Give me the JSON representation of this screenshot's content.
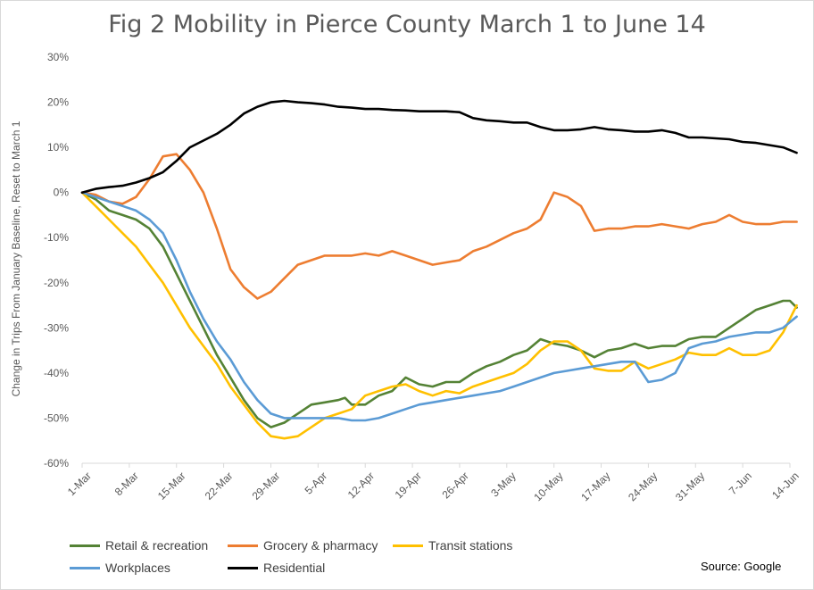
{
  "chart_data": {
    "type": "line",
    "title": "Fig 2 Mobility in Pierce County March 1 to June 14",
    "ylabel": "Change in Trips From January Baseline, Reset to March 1",
    "xlabel": "",
    "source": "Source: Google",
    "ylim": [
      -60,
      30
    ],
    "yticks": [
      "30%",
      "20%",
      "10%",
      "0%",
      "-10%",
      "-20%",
      "-30%",
      "-40%",
      "-50%",
      "-60%"
    ],
    "xticks": [
      "1-Mar",
      "8-Mar",
      "15-Mar",
      "22-Mar",
      "29-Mar",
      "5-Apr",
      "12-Apr",
      "19-Apr",
      "26-Apr",
      "3-May",
      "10-May",
      "17-May",
      "24-May",
      "31-May",
      "7-Jun",
      "14-Jun"
    ],
    "x_unit": "days since 1-Mar",
    "grid": false,
    "legend_position": "bottom",
    "series": [
      {
        "name": "Retail & recreation",
        "color": "#548235",
        "points": [
          [
            0,
            0
          ],
          [
            2,
            -1.5
          ],
          [
            4,
            -4
          ],
          [
            6,
            -5
          ],
          [
            8,
            -6
          ],
          [
            10,
            -8
          ],
          [
            12,
            -12
          ],
          [
            14,
            -18
          ],
          [
            16,
            -24
          ],
          [
            18,
            -30
          ],
          [
            20,
            -36
          ],
          [
            22,
            -41
          ],
          [
            24,
            -46
          ],
          [
            26,
            -50
          ],
          [
            28,
            -52
          ],
          [
            30,
            -51
          ],
          [
            32,
            -49
          ],
          [
            34,
            -47
          ],
          [
            36,
            -46.5
          ],
          [
            38,
            -46
          ],
          [
            39,
            -45.5
          ],
          [
            40,
            -47
          ],
          [
            42,
            -47
          ],
          [
            44,
            -45
          ],
          [
            46,
            -44
          ],
          [
            48,
            -41
          ],
          [
            50,
            -42.5
          ],
          [
            52,
            -43
          ],
          [
            54,
            -42
          ],
          [
            56,
            -42
          ],
          [
            58,
            -40
          ],
          [
            60,
            -38.5
          ],
          [
            62,
            -37.5
          ],
          [
            64,
            -36
          ],
          [
            66,
            -35
          ],
          [
            68,
            -32.5
          ],
          [
            70,
            -33.5
          ],
          [
            72,
            -34
          ],
          [
            74,
            -35
          ],
          [
            76,
            -36.5
          ],
          [
            78,
            -35
          ],
          [
            80,
            -34.5
          ],
          [
            82,
            -33.5
          ],
          [
            84,
            -34.5
          ],
          [
            86,
            -34
          ],
          [
            88,
            -34
          ],
          [
            90,
            -32.5
          ],
          [
            92,
            -32
          ],
          [
            94,
            -32
          ],
          [
            96,
            -30
          ],
          [
            98,
            -28
          ],
          [
            100,
            -26
          ],
          [
            102,
            -25
          ],
          [
            104,
            -24
          ],
          [
            105,
            -24
          ],
          [
            106,
            -25.5
          ]
        ]
      },
      {
        "name": "Grocery & pharmacy",
        "color": "#ed7d31",
        "points": [
          [
            0,
            0
          ],
          [
            2,
            -0.5
          ],
          [
            4,
            -2
          ],
          [
            6,
            -2.5
          ],
          [
            8,
            -1
          ],
          [
            10,
            3
          ],
          [
            12,
            8
          ],
          [
            14,
            8.5
          ],
          [
            16,
            5
          ],
          [
            18,
            0
          ],
          [
            20,
            -8
          ],
          [
            22,
            -17
          ],
          [
            24,
            -21
          ],
          [
            26,
            -23.5
          ],
          [
            28,
            -22
          ],
          [
            30,
            -19
          ],
          [
            32,
            -16
          ],
          [
            34,
            -15
          ],
          [
            36,
            -14
          ],
          [
            38,
            -14
          ],
          [
            40,
            -14
          ],
          [
            42,
            -13.5
          ],
          [
            44,
            -14
          ],
          [
            46,
            -13
          ],
          [
            48,
            -14
          ],
          [
            50,
            -15
          ],
          [
            52,
            -16
          ],
          [
            54,
            -15.5
          ],
          [
            56,
            -15
          ],
          [
            58,
            -13
          ],
          [
            60,
            -12
          ],
          [
            62,
            -10.5
          ],
          [
            64,
            -9
          ],
          [
            66,
            -8
          ],
          [
            68,
            -6
          ],
          [
            70,
            0
          ],
          [
            72,
            -1
          ],
          [
            74,
            -3
          ],
          [
            76,
            -8.5
          ],
          [
            78,
            -8
          ],
          [
            80,
            -8
          ],
          [
            82,
            -7.5
          ],
          [
            84,
            -7.5
          ],
          [
            86,
            -7
          ],
          [
            88,
            -7.5
          ],
          [
            90,
            -8
          ],
          [
            92,
            -7
          ],
          [
            94,
            -6.5
          ],
          [
            96,
            -5
          ],
          [
            98,
            -6.5
          ],
          [
            100,
            -7
          ],
          [
            102,
            -7
          ],
          [
            104,
            -6.5
          ],
          [
            106,
            -6.5
          ]
        ]
      },
      {
        "name": "Transit stations",
        "color": "#ffc000",
        "points": [
          [
            0,
            0
          ],
          [
            2,
            -3
          ],
          [
            4,
            -6
          ],
          [
            6,
            -9
          ],
          [
            8,
            -12
          ],
          [
            10,
            -16
          ],
          [
            12,
            -20
          ],
          [
            14,
            -25
          ],
          [
            16,
            -30
          ],
          [
            18,
            -34
          ],
          [
            20,
            -38
          ],
          [
            22,
            -43
          ],
          [
            24,
            -47
          ],
          [
            26,
            -51
          ],
          [
            28,
            -54
          ],
          [
            30,
            -54.5
          ],
          [
            32,
            -54
          ],
          [
            34,
            -52
          ],
          [
            36,
            -50
          ],
          [
            38,
            -49
          ],
          [
            40,
            -48
          ],
          [
            42,
            -45
          ],
          [
            44,
            -44
          ],
          [
            46,
            -43
          ],
          [
            48,
            -42.5
          ],
          [
            50,
            -44
          ],
          [
            52,
            -45
          ],
          [
            54,
            -44
          ],
          [
            56,
            -44.5
          ],
          [
            58,
            -43
          ],
          [
            60,
            -42
          ],
          [
            62,
            -41
          ],
          [
            64,
            -40
          ],
          [
            66,
            -38
          ],
          [
            68,
            -35
          ],
          [
            70,
            -33
          ],
          [
            72,
            -33
          ],
          [
            74,
            -35
          ],
          [
            76,
            -39
          ],
          [
            78,
            -39.5
          ],
          [
            80,
            -39.5
          ],
          [
            82,
            -37.5
          ],
          [
            84,
            -39
          ],
          [
            86,
            -38
          ],
          [
            88,
            -37
          ],
          [
            90,
            -35.5
          ],
          [
            92,
            -36
          ],
          [
            94,
            -36
          ],
          [
            96,
            -34.5
          ],
          [
            98,
            -36
          ],
          [
            100,
            -36
          ],
          [
            102,
            -35
          ],
          [
            104,
            -31
          ],
          [
            106,
            -25
          ]
        ]
      },
      {
        "name": "Workplaces",
        "color": "#5b9bd5",
        "points": [
          [
            0,
            0
          ],
          [
            2,
            -1
          ],
          [
            4,
            -2
          ],
          [
            6,
            -3
          ],
          [
            8,
            -4
          ],
          [
            10,
            -6
          ],
          [
            12,
            -9
          ],
          [
            14,
            -15
          ],
          [
            16,
            -22
          ],
          [
            18,
            -28
          ],
          [
            20,
            -33
          ],
          [
            22,
            -37
          ],
          [
            24,
            -42
          ],
          [
            26,
            -46
          ],
          [
            28,
            -49
          ],
          [
            30,
            -50
          ],
          [
            32,
            -50
          ],
          [
            34,
            -50
          ],
          [
            36,
            -50
          ],
          [
            38,
            -50
          ],
          [
            40,
            -50.5
          ],
          [
            42,
            -50.5
          ],
          [
            44,
            -50
          ],
          [
            46,
            -49
          ],
          [
            48,
            -48
          ],
          [
            50,
            -47
          ],
          [
            52,
            -46.5
          ],
          [
            54,
            -46
          ],
          [
            56,
            -45.5
          ],
          [
            58,
            -45
          ],
          [
            60,
            -44.5
          ],
          [
            62,
            -44
          ],
          [
            64,
            -43
          ],
          [
            66,
            -42
          ],
          [
            68,
            -41
          ],
          [
            70,
            -40
          ],
          [
            72,
            -39.5
          ],
          [
            74,
            -39
          ],
          [
            76,
            -38.5
          ],
          [
            78,
            -38
          ],
          [
            80,
            -37.5
          ],
          [
            82,
            -37.5
          ],
          [
            84,
            -42
          ],
          [
            86,
            -41.5
          ],
          [
            88,
            -40
          ],
          [
            90,
            -34.5
          ],
          [
            92,
            -33.5
          ],
          [
            94,
            -33
          ],
          [
            96,
            -32
          ],
          [
            98,
            -31.5
          ],
          [
            100,
            -31
          ],
          [
            102,
            -31
          ],
          [
            104,
            -30
          ],
          [
            106,
            -27.5
          ]
        ]
      },
      {
        "name": "Residential",
        "color": "#000000",
        "points": [
          [
            0,
            0
          ],
          [
            2,
            0.8
          ],
          [
            4,
            1.2
          ],
          [
            6,
            1.5
          ],
          [
            8,
            2.2
          ],
          [
            10,
            3.2
          ],
          [
            12,
            4.5
          ],
          [
            14,
            7
          ],
          [
            16,
            10
          ],
          [
            18,
            11.5
          ],
          [
            20,
            13
          ],
          [
            22,
            15
          ],
          [
            24,
            17.5
          ],
          [
            26,
            19
          ],
          [
            28,
            20
          ],
          [
            30,
            20.3
          ],
          [
            32,
            20
          ],
          [
            34,
            19.8
          ],
          [
            36,
            19.5
          ],
          [
            38,
            19
          ],
          [
            40,
            18.8
          ],
          [
            42,
            18.5
          ],
          [
            44,
            18.5
          ],
          [
            46,
            18.3
          ],
          [
            48,
            18.2
          ],
          [
            50,
            18
          ],
          [
            52,
            18
          ],
          [
            54,
            18
          ],
          [
            56,
            17.8
          ],
          [
            58,
            16.5
          ],
          [
            60,
            16
          ],
          [
            62,
            15.8
          ],
          [
            64,
            15.5
          ],
          [
            66,
            15.5
          ],
          [
            68,
            14.5
          ],
          [
            70,
            13.8
          ],
          [
            72,
            13.8
          ],
          [
            74,
            14
          ],
          [
            76,
            14.5
          ],
          [
            78,
            14
          ],
          [
            80,
            13.8
          ],
          [
            82,
            13.5
          ],
          [
            84,
            13.5
          ],
          [
            86,
            13.8
          ],
          [
            88,
            13.2
          ],
          [
            90,
            12.2
          ],
          [
            92,
            12.2
          ],
          [
            94,
            12
          ],
          [
            96,
            11.8
          ],
          [
            98,
            11.2
          ],
          [
            100,
            11
          ],
          [
            102,
            10.5
          ],
          [
            104,
            10
          ],
          [
            106,
            8.8
          ]
        ]
      }
    ]
  }
}
